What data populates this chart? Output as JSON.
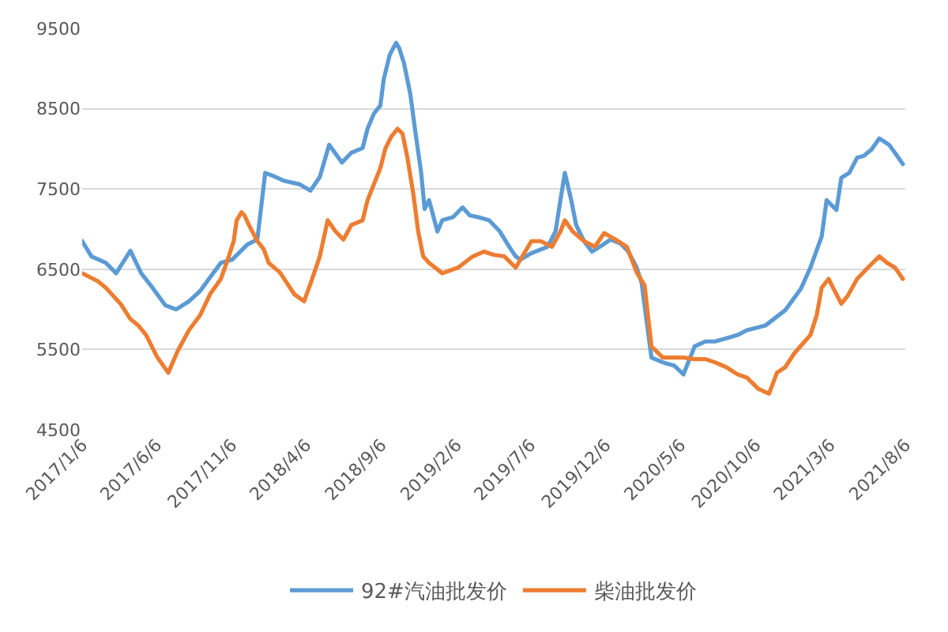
{
  "chart_data": {
    "type": "line",
    "series": [
      {
        "name": "92#汽油批发价",
        "color": "#5b9bd5",
        "x": [
          "2017-01-06",
          "2017-01-25",
          "2017-02-23",
          "2017-03-16",
          "2017-04-14",
          "2017-05-06",
          "2017-05-29",
          "2017-06-24",
          "2017-07-16",
          "2017-08-11",
          "2017-09-03",
          "2017-09-23",
          "2017-10-15",
          "2017-11-07",
          "2017-12-08",
          "2017-12-28",
          "2018-01-13",
          "2018-01-30",
          "2018-02-21",
          "2018-03-23",
          "2018-04-15",
          "2018-05-04",
          "2018-05-23",
          "2018-06-18",
          "2018-07-07",
          "2018-07-30",
          "2018-08-09",
          "2018-08-22",
          "2018-09-04",
          "2018-09-11",
          "2018-09-23",
          "2018-10-06",
          "2018-10-12",
          "2018-10-22",
          "2018-11-04",
          "2018-11-14",
          "2018-11-26",
          "2018-12-03",
          "2018-12-12",
          "2018-12-29",
          "2019-01-08",
          "2019-01-30",
          "2019-02-18",
          "2019-03-05",
          "2019-03-21",
          "2019-04-13",
          "2019-05-05",
          "2019-05-24",
          "2019-06-06",
          "2019-06-16",
          "2019-07-08",
          "2019-08-10",
          "2019-08-26",
          "2019-09-05",
          "2019-09-14",
          "2019-09-27",
          "2019-10-07",
          "2019-10-23",
          "2019-11-08",
          "2019-11-24",
          "2019-12-16",
          "2020-01-05",
          "2020-01-21",
          "2020-02-07",
          "2020-02-17",
          "2020-03-08",
          "2020-03-31",
          "2020-04-23",
          "2020-05-12",
          "2020-06-04",
          "2020-06-26",
          "2020-07-15",
          "2020-08-07",
          "2020-08-30",
          "2020-09-18",
          "2020-10-26",
          "2020-12-05",
          "2021-01-06",
          "2021-01-25",
          "2021-02-17",
          "2021-02-27",
          "2021-03-09",
          "2021-03-19",
          "2021-03-29",
          "2021-04-14",
          "2021-04-30",
          "2021-05-13",
          "2021-05-29",
          "2021-06-14",
          "2021-06-24",
          "2021-07-04",
          "2021-07-16",
          "2021-08-01"
        ],
        "values": [
          6850,
          6660,
          6580,
          6450,
          6730,
          6450,
          6270,
          6050,
          6000,
          6100,
          6230,
          6400,
          6580,
          6620,
          6810,
          6870,
          7700,
          7660,
          7600,
          7560,
          7480,
          7650,
          8050,
          7830,
          7950,
          8010,
          8250,
          8440,
          8540,
          8870,
          9170,
          9320,
          9260,
          9070,
          8680,
          8220,
          7700,
          7250,
          7360,
          6970,
          7110,
          7150,
          7270,
          7170,
          7150,
          7110,
          6970,
          6780,
          6660,
          6620,
          6700,
          6780,
          6970,
          7360,
          7700,
          7360,
          7050,
          6850,
          6720,
          6780,
          6870,
          6820,
          6720,
          6520,
          6330,
          5400,
          5340,
          5300,
          5190,
          5540,
          5600,
          5600,
          5640,
          5680,
          5740,
          5800,
          5990,
          6260,
          6520,
          6910,
          7360,
          7300,
          7240,
          7640,
          7700,
          7890,
          7910,
          7990,
          8130,
          8090,
          8050,
          7950,
          7810
        ]
      },
      {
        "name": "柴油批发价",
        "color": "#ed7d31",
        "x": [
          "2017-01-06",
          "2017-02-07",
          "2017-02-23",
          "2017-03-25",
          "2017-04-14",
          "2017-04-30",
          "2017-05-16",
          "2017-06-08",
          "2017-06-30",
          "2017-07-19",
          "2017-08-11",
          "2017-09-03",
          "2017-09-23",
          "2017-10-15",
          "2017-10-31",
          "2017-11-10",
          "2017-11-16",
          "2017-11-26",
          "2017-12-02",
          "2017-12-11",
          "2017-12-28",
          "2018-01-10",
          "2018-01-20",
          "2018-02-12",
          "2018-03-13",
          "2018-04-02",
          "2018-04-15",
          "2018-05-04",
          "2018-05-20",
          "2018-06-05",
          "2018-06-21",
          "2018-07-07",
          "2018-07-30",
          "2018-08-09",
          "2018-08-22",
          "2018-09-04",
          "2018-09-14",
          "2018-09-26",
          "2018-10-09",
          "2018-10-19",
          "2018-10-29",
          "2018-11-10",
          "2018-11-20",
          "2018-11-30",
          "2018-12-12",
          "2019-01-08",
          "2019-02-09",
          "2019-03-11",
          "2019-04-03",
          "2019-04-22",
          "2019-05-14",
          "2019-06-06",
          "2019-07-08",
          "2019-07-27",
          "2019-08-19",
          "2019-09-05",
          "2019-09-14",
          "2019-09-30",
          "2019-10-23",
          "2019-11-14",
          "2019-12-03",
          "2019-12-26",
          "2020-01-18",
          "2020-02-07",
          "2020-02-23",
          "2020-03-08",
          "2020-03-31",
          "2020-05-12",
          "2020-06-04",
          "2020-06-26",
          "2020-07-15",
          "2020-08-07",
          "2020-08-30",
          "2020-09-18",
          "2020-10-11",
          "2020-11-02",
          "2020-11-18",
          "2020-12-05",
          "2020-12-23",
          "2021-01-25",
          "2021-02-07",
          "2021-02-17",
          "2021-03-03",
          "2021-03-12",
          "2021-03-29",
          "2021-04-11",
          "2021-04-30",
          "2021-05-22",
          "2021-06-14",
          "2021-06-30",
          "2021-07-16",
          "2021-08-01"
        ],
        "values": [
          6450,
          6350,
          6270,
          6070,
          5880,
          5800,
          5680,
          5400,
          5210,
          5480,
          5740,
          5930,
          6190,
          6380,
          6660,
          6850,
          7110,
          7210,
          7170,
          7050,
          6850,
          6750,
          6580,
          6460,
          6190,
          6100,
          6320,
          6660,
          7110,
          6970,
          6870,
          7050,
          7110,
          7360,
          7560,
          7760,
          8000,
          8150,
          8250,
          8190,
          7890,
          7440,
          6970,
          6660,
          6580,
          6450,
          6520,
          6660,
          6720,
          6680,
          6660,
          6520,
          6850,
          6850,
          6780,
          6970,
          7110,
          6970,
          6850,
          6780,
          6950,
          6870,
          6780,
          6460,
          6300,
          5540,
          5400,
          5400,
          5380,
          5380,
          5340,
          5280,
          5190,
          5150,
          5010,
          4950,
          5210,
          5280,
          5450,
          5680,
          5930,
          6270,
          6380,
          6270,
          6070,
          6170,
          6380,
          6520,
          6660,
          6580,
          6520,
          6380
        ]
      }
    ],
    "xlim": [
      "2017-01-06",
      "2021-08-06"
    ],
    "xticks": [
      {
        "value": "2017-01-06",
        "label": "2017/1/6"
      },
      {
        "value": "2017-06-06",
        "label": "2017/6/6"
      },
      {
        "value": "2017-11-06",
        "label": "2017/11/6"
      },
      {
        "value": "2018-04-06",
        "label": "2018/4/6"
      },
      {
        "value": "2018-09-06",
        "label": "2018/9/6"
      },
      {
        "value": "2019-02-06",
        "label": "2019/2/6"
      },
      {
        "value": "2019-07-06",
        "label": "2019/7/6"
      },
      {
        "value": "2019-12-06",
        "label": "2019/12/6"
      },
      {
        "value": "2020-05-06",
        "label": "2020/5/6"
      },
      {
        "value": "2020-10-06",
        "label": "2020/10/6"
      },
      {
        "value": "2021-03-06",
        "label": "2021/3/6"
      },
      {
        "value": "2021-08-06",
        "label": "2021/8/6"
      }
    ],
    "ylim": [
      4500,
      9500
    ],
    "yticks": [
      4500,
      5500,
      6500,
      7500,
      8500,
      9500
    ],
    "grid": "y",
    "legend": "bottom"
  }
}
